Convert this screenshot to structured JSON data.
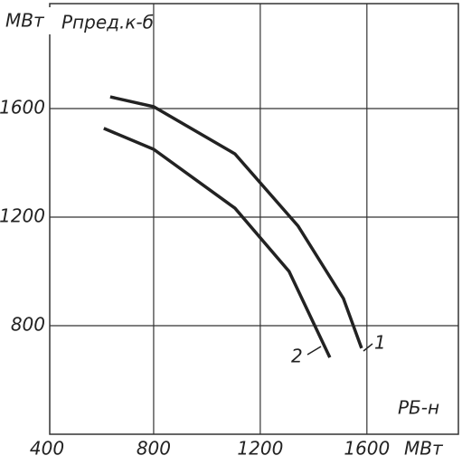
{
  "chart_data": {
    "type": "line",
    "y_unit": "МВт",
    "y_label": "Pпред.к-б",
    "x_label": "PБ-н",
    "x_unit": "МВт",
    "series": [
      {
        "name": "1",
        "color": "#222",
        "x": [
          637,
          800,
          1105,
          1342,
          1512,
          1580
        ],
        "values": [
          1643,
          1607,
          1433,
          1167,
          900,
          717
        ]
      },
      {
        "name": "2",
        "color": "#222",
        "x": [
          613,
          800,
          1105,
          1308,
          1461
        ],
        "values": [
          1527,
          1450,
          1233,
          1000,
          683
        ]
      }
    ],
    "xlim": [
      400,
      1950
    ],
    "ylim": [
      400,
      2000
    ],
    "xticks": [
      400,
      800,
      1200,
      1600
    ],
    "yticks": [
      800,
      1200,
      1600
    ],
    "grid": true
  }
}
